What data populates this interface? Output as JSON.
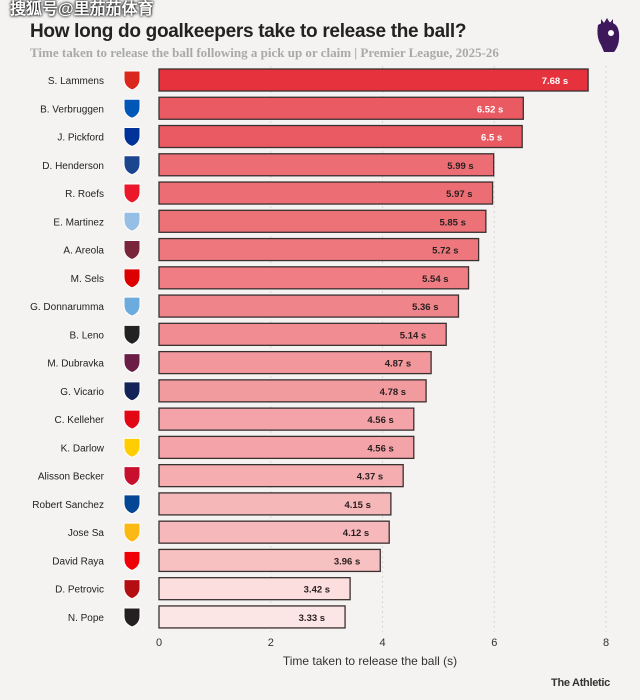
{
  "watermark": "搜狐号@里茄茄体育",
  "title": "How long do goalkeepers take to release the ball?",
  "subtitle": "Time taken to release the ball following a pick up or claim | Premier League, 2025-26",
  "brand": "The Athletic",
  "league_logo": "premier-league-lion-icon",
  "colors": {
    "bar_max": "#e5323d",
    "bar_min": "#fce6e5",
    "bar_border": "#3a3030",
    "grid": "#d6d6d6"
  },
  "chart_data": {
    "type": "bar",
    "orientation": "horizontal",
    "title": "How long do goalkeepers take to release the ball?",
    "xlabel": "Time taken to release the ball (s)",
    "ylabel": "",
    "xlim": [
      0,
      8
    ],
    "xticks": [
      "0",
      "2",
      "4",
      "6",
      "8"
    ],
    "grid": "vertical dotted",
    "categories": [
      "S. Lammens",
      "B. Verbruggen",
      "J. Pickford",
      "D. Henderson",
      "R. Roefs",
      "E. Martinez",
      "A. Areola",
      "M. Sels",
      "G. Donnarumma",
      "B. Leno",
      "M. Dubravka",
      "G. Vicario",
      "C. Kelleher",
      "K. Darlow",
      "Alisson Becker",
      "Robert Sanchez",
      "Jose Sa",
      "David Raya",
      "D. Petrovic",
      "N. Pope"
    ],
    "values": [
      7.68,
      6.52,
      6.5,
      5.99,
      5.97,
      5.85,
      5.72,
      5.54,
      5.36,
      5.14,
      4.87,
      4.78,
      4.56,
      4.56,
      4.37,
      4.15,
      4.12,
      3.96,
      3.42,
      3.33
    ],
    "labels": [
      "7.68 s",
      "6.52 s",
      "6.5 s",
      "5.99 s",
      "5.97 s",
      "5.85 s",
      "5.72 s",
      "5.54 s",
      "5.36 s",
      "5.14 s",
      "4.87 s",
      "4.78 s",
      "4.56 s",
      "4.56 s",
      "4.37 s",
      "4.15 s",
      "4.12 s",
      "3.96 s",
      "3.42 s",
      "3.33 s"
    ],
    "club_icons": [
      {
        "name": "man-utd-crest-icon",
        "color": "#da291c"
      },
      {
        "name": "brighton-crest-icon",
        "color": "#0057b8"
      },
      {
        "name": "everton-crest-icon",
        "color": "#003399"
      },
      {
        "name": "crystal-palace-crest-icon",
        "color": "#1b458f"
      },
      {
        "name": "sunderland-crest-icon",
        "color": "#eb172b"
      },
      {
        "name": "aston-villa-crest-icon",
        "color": "#95bfe5"
      },
      {
        "name": "west-ham-crest-icon",
        "color": "#7a263a"
      },
      {
        "name": "nottingham-forest-crest-icon",
        "color": "#dd0000"
      },
      {
        "name": "man-city-crest-icon",
        "color": "#6cabdd"
      },
      {
        "name": "fulham-crest-icon",
        "color": "#222222"
      },
      {
        "name": "burnley-crest-icon",
        "color": "#6c1d45"
      },
      {
        "name": "tottenham-crest-icon",
        "color": "#132257"
      },
      {
        "name": "brentford-crest-icon",
        "color": "#e30613"
      },
      {
        "name": "leeds-crest-icon",
        "color": "#ffcd00"
      },
      {
        "name": "liverpool-crest-icon",
        "color": "#c8102e"
      },
      {
        "name": "chelsea-crest-icon",
        "color": "#034694"
      },
      {
        "name": "wolves-crest-icon",
        "color": "#fdb913"
      },
      {
        "name": "arsenal-crest-icon",
        "color": "#ef0107"
      },
      {
        "name": "bournemouth-crest-icon",
        "color": "#b50e12"
      },
      {
        "name": "newcastle-crest-icon",
        "color": "#241f20"
      }
    ]
  }
}
